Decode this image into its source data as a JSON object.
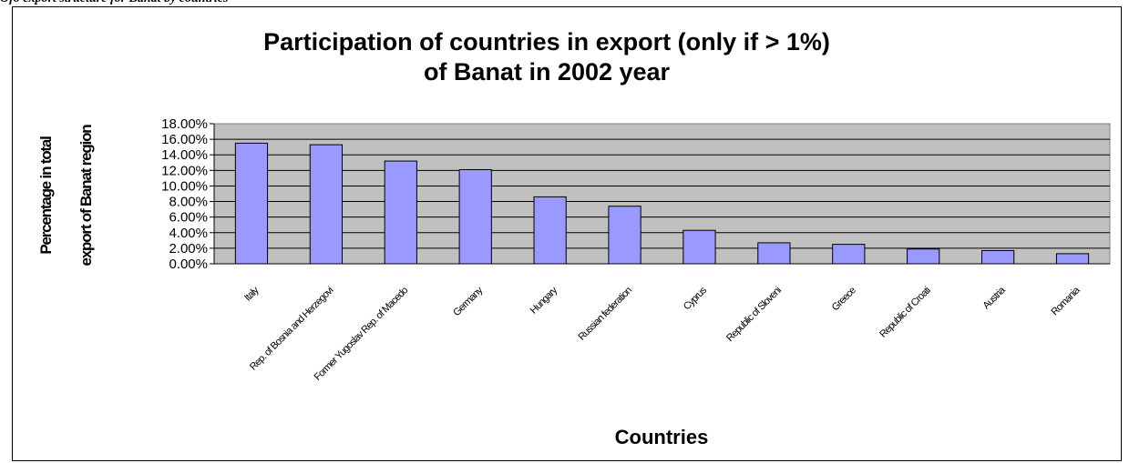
{
  "caption": "Ofo export structure for Banat by countries",
  "chart_data": {
    "type": "bar",
    "title": [
      "Participation of countries in export (only if > 1%)",
      "of Banat in 2002 year"
    ],
    "xlabel": "Countries",
    "ylabel": [
      "Percentage in total",
      "export of Banat region"
    ],
    "categories": [
      "Italy",
      "Rep. of Bosnia and Herzegovi",
      "Former Yugoslav Rep. of Macedo",
      "Germany",
      "Hungary",
      "Russian federation",
      "Cyprus",
      "Republic of Sloveni",
      "Greece",
      "Republic of Croati",
      "Austria",
      "Romania"
    ],
    "values": [
      15.5,
      15.3,
      13.2,
      12.1,
      8.6,
      7.4,
      4.3,
      2.7,
      2.5,
      1.9,
      1.7,
      1.3
    ],
    "ylim": [
      0,
      18
    ],
    "yticks": [
      "0.00%",
      "2.00%",
      "4.00%",
      "6.00%",
      "8.00%",
      "10.00%",
      "12.00%",
      "14.00%",
      "16.00%",
      "18.00%"
    ],
    "grid": true,
    "legend": "none",
    "colors": {
      "bar_fill": "#9999ff",
      "bar_stroke": "#000000",
      "plot_background": "#c0c0c0",
      "gridline": "#000000"
    }
  }
}
